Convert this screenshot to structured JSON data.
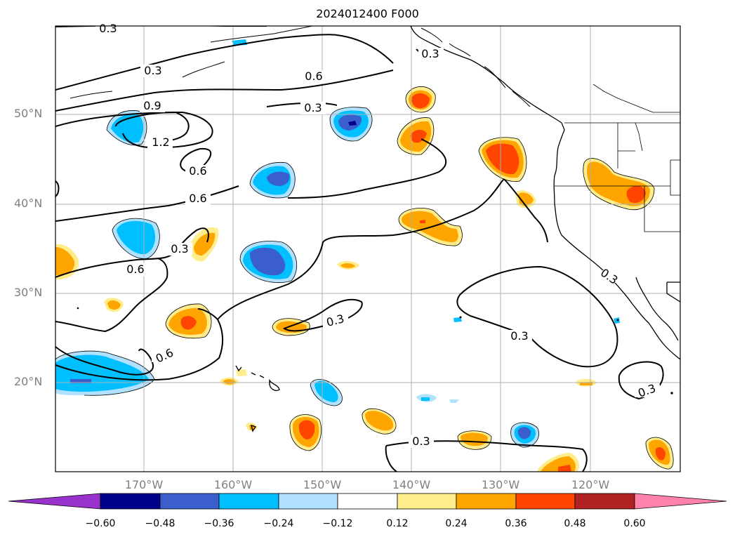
{
  "title": "2024012400 F000",
  "lat_labels": [
    "50°N",
    "40°N",
    "30°N",
    "20°N"
  ],
  "lon_labels": [
    "170°W",
    "160°W",
    "150°W",
    "140°W",
    "130°W",
    "120°W"
  ],
  "contour_labels": [
    "0.3",
    "0.3",
    "0.6",
    "0.3",
    "0.9",
    "1.2",
    "0.6",
    "0.6",
    "0.3",
    "0.6",
    "0.6",
    "0.3",
    "0.3",
    "0.3",
    "0.3",
    "0.3"
  ],
  "colorbar": {
    "ticks": [
      "−0.60",
      "−0.48",
      "−0.36",
      "−0.24",
      "−0.12",
      "0.12",
      "0.24",
      "0.36",
      "0.48",
      "0.60"
    ],
    "colors": [
      "#9932cc",
      "#00008b",
      "#3a5fcd",
      "#00bfff",
      "#b0e2ff",
      "#ffffff",
      "#ffec8b",
      "#ffa500",
      "#ff4500",
      "#b22222",
      "#ff82ab"
    ]
  },
  "colors": {
    "lightblue": "#b0e2ff",
    "blue": "#00bfff",
    "royal": "#3a5fcd",
    "navy": "#00008b",
    "yellow": "#ffec8b",
    "orange": "#ffa500",
    "red": "#ff4500",
    "darkred": "#b22222"
  }
}
